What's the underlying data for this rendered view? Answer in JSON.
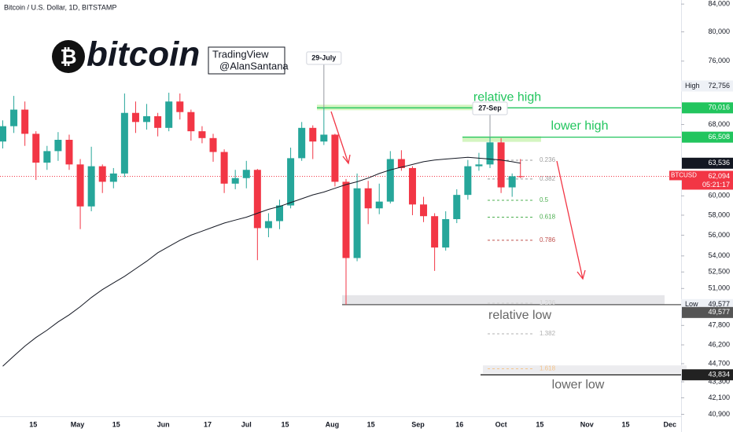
{
  "chart_data": {
    "type": "candlestick",
    "title": "Bitcoin / U.S. Dollar, 1D, BITSTAMP",
    "logo": {
      "symbol": "₿",
      "text": "bitcoin"
    },
    "watermark": [
      "TradingView",
      "@AlanSantana"
    ],
    "log_scale": true,
    "grid": false,
    "ylim": [
      40200,
      84600
    ],
    "yticks": [
      {
        "value": 84000,
        "label": "84,000"
      },
      {
        "value": 80000,
        "label": "80,000"
      },
      {
        "value": 76000,
        "label": "76,000"
      },
      {
        "value": 68000,
        "label": "68,000"
      },
      {
        "value": 60000,
        "label": "60,000"
      },
      {
        "value": 58000,
        "label": "58,000"
      },
      {
        "value": 56000,
        "label": "56,000"
      },
      {
        "value": 54000,
        "label": "54,000"
      },
      {
        "value": 52500,
        "label": "52,500"
      },
      {
        "value": 51000,
        "label": "51,000"
      },
      {
        "value": 47800,
        "label": "47,800"
      },
      {
        "value": 46200,
        "label": "46,200"
      },
      {
        "value": 44700,
        "label": "44,700"
      },
      {
        "value": 43300,
        "label": "43,300"
      },
      {
        "value": 42100,
        "label": "42,100"
      },
      {
        "value": 40900,
        "label": "40,900"
      }
    ],
    "xticks": [
      {
        "value": "Apr 15",
        "label": "15"
      },
      {
        "value": "May 1",
        "label": "May"
      },
      {
        "value": "May 15",
        "label": "15"
      },
      {
        "value": "Jun 1",
        "label": "Jun"
      },
      {
        "value": "Jun 17",
        "label": "17"
      },
      {
        "value": "Jul 1",
        "label": "Jul"
      },
      {
        "value": "Jul 15",
        "label": "15"
      },
      {
        "value": "Aug 1",
        "label": "Aug"
      },
      {
        "value": "Aug 15",
        "label": "15"
      },
      {
        "value": "Sep 1",
        "label": "Sep"
      },
      {
        "value": "Sep 16",
        "label": "16"
      },
      {
        "value": "Oct 1",
        "label": "Oct"
      },
      {
        "value": "Oct 15",
        "label": "15"
      },
      {
        "value": "Nov 1",
        "label": "Nov"
      },
      {
        "value": "Nov 15",
        "label": "15"
      },
      {
        "value": "Dec 1",
        "label": "Dec"
      }
    ],
    "x": [
      "Apr 4",
      "Apr 8",
      "Apr 12",
      "Apr 16",
      "Apr 20",
      "Apr 24",
      "Apr 28",
      "May 2",
      "May 6",
      "May 10",
      "May 14",
      "May 18",
      "May 22",
      "May 26",
      "May 30",
      "Jun 3",
      "Jun 7",
      "Jun 11",
      "Jun 15",
      "Jun 19",
      "Jun 23",
      "Jun 27",
      "Jul 1",
      "Jul 5",
      "Jul 9",
      "Jul 13",
      "Jul 17",
      "Jul 21",
      "Jul 25",
      "Jul 29",
      "Aug 2",
      "Aug 6",
      "Aug 10",
      "Aug 14",
      "Aug 18",
      "Aug 22",
      "Aug 26",
      "Aug 30",
      "Sep 3",
      "Sep 7",
      "Sep 11",
      "Sep 15",
      "Sep 19",
      "Sep 23",
      "Sep 27",
      "Oct 1",
      "Oct 5",
      "Oct 8"
    ],
    "series": [
      {
        "name": "BTCUSD",
        "up_color": "#26a69a",
        "down_color": "#f23645",
        "open": [
          66000,
          67800,
          69800,
          66900,
          63600,
          64900,
          66200,
          63400,
          58900,
          63200,
          61500,
          62400,
          69400,
          68300,
          69000,
          67600,
          70800,
          69500,
          67200,
          66400,
          64800,
          61300,
          61900,
          62800,
          56700,
          57400,
          59000,
          64100,
          67600,
          66000,
          66800,
          61500,
          53800,
          60800,
          58700,
          59400,
          64000,
          63000,
          59100,
          57900,
          54800,
          57600,
          60100,
          63200,
          63400,
          65900,
          60900,
          62100
        ],
        "high": [
          68500,
          71500,
          70800,
          67200,
          65500,
          67100,
          66800,
          64000,
          65400,
          63400,
          63000,
          71800,
          70800,
          70500,
          69400,
          71900,
          71800,
          69800,
          67800,
          66900,
          65100,
          62800,
          63800,
          62900,
          58200,
          59600,
          65300,
          68300,
          67900,
          70016,
          66900,
          61800,
          62400,
          61600,
          61300,
          64900,
          65000,
          63200,
          59900,
          58200,
          58400,
          60700,
          63900,
          64700,
          66508,
          66400,
          62400,
          64000
        ],
        "low": [
          65200,
          67000,
          65500,
          61700,
          62800,
          63800,
          62800,
          56600,
          58400,
          60300,
          60800,
          62000,
          67000,
          67400,
          66600,
          67200,
          68600,
          66100,
          65800,
          63700,
          60300,
          60700,
          60800,
          53600,
          55800,
          56600,
          58700,
          63800,
          64000,
          65600,
          61000,
          49577,
          53500,
          57100,
          58100,
          59200,
          62700,
          58000,
          57300,
          52600,
          54500,
          57200,
          59600,
          62700,
          63000,
          60300,
          59900,
          61900
        ],
        "close": [
          67800,
          69800,
          66900,
          63600,
          64900,
          66200,
          63400,
          58900,
          63200,
          61500,
          62400,
          69400,
          68300,
          69000,
          67600,
          70800,
          69500,
          67200,
          66400,
          64800,
          61300,
          61900,
          62800,
          56700,
          57400,
          59000,
          64100,
          67600,
          66000,
          66800,
          61500,
          53800,
          60800,
          58700,
          59400,
          64000,
          63000,
          59100,
          57900,
          54800,
          57600,
          60100,
          63200,
          63400,
          65900,
          60900,
          62100,
          62094
        ]
      },
      {
        "type": "line",
        "color": "#131722",
        "values": [
          44500,
          45300,
          46100,
          46800,
          47400,
          48100,
          48700,
          49400,
          50200,
          50900,
          51500,
          52100,
          52800,
          53500,
          54300,
          54900,
          55500,
          56000,
          56400,
          56800,
          57200,
          57500,
          57800,
          58200,
          58600,
          58900,
          59300,
          59700,
          60100,
          60400,
          60800,
          61200,
          61500,
          61900,
          62400,
          62800,
          63100,
          63400,
          63700,
          63900,
          64000,
          64100,
          64200,
          64100,
          64000,
          63900,
          63700,
          63536
        ],
        "last_label": {
          "value": 63536,
          "label": "63,536"
        }
      }
    ],
    "current": {
      "tag": "BTCUSD",
      "price": {
        "value": 62094,
        "label": "62,094"
      },
      "countdown": "05:21:17",
      "color": "#f23645"
    },
    "markers": [
      {
        "tag": "High",
        "price": {
          "value": 72756,
          "label": "72,756"
        }
      },
      {
        "tag": "Low",
        "price": {
          "value": 49577,
          "label": "49,577"
        }
      }
    ],
    "levels": [
      {
        "text": "relative high",
        "price": {
          "value": 70016,
          "label": "70,016"
        },
        "color": "#22c55e",
        "text_color": "#22c55e"
      },
      {
        "text": "lower high",
        "price": {
          "value": 66508,
          "label": "66,508"
        },
        "color": "#22c55e",
        "text_color": "#22c55e"
      },
      {
        "text": "relative low",
        "price": {
          "value": 49577,
          "label": "49,577"
        },
        "color": "#555555",
        "text_color": "#666666"
      },
      {
        "text": "lower low",
        "price": {
          "value": 43834,
          "label": "43,834"
        },
        "color": "#222222",
        "text_color": "#666666"
      }
    ],
    "fib": [
      {
        "ratio": 0.236,
        "price": 63870,
        "color": "#9e9e9e"
      },
      {
        "ratio": 0.382,
        "price": 61800,
        "color": "#9e9e9e"
      },
      {
        "ratio": 0.5,
        "price": 59540,
        "color": "#4caf50"
      },
      {
        "ratio": 0.618,
        "price": 57800,
        "color": "#4caf50"
      },
      {
        "ratio": 0.786,
        "price": 55500,
        "color": "#c0504d"
      },
      {
        "ratio": 1.236,
        "price": 49700,
        "color": "#d0d0d0"
      },
      {
        "ratio": 1.382,
        "price": 47100,
        "color": "#b0b0b0"
      },
      {
        "ratio": 1.618,
        "price": 44300,
        "color": "#f5c48a"
      }
    ],
    "annotations": [
      {
        "text": "29-July"
      },
      {
        "text": "27-Sep"
      }
    ]
  }
}
